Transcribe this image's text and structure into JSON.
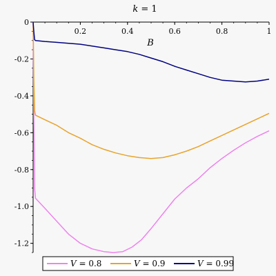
{
  "chart_data": {
    "type": "line",
    "title": "k = 1",
    "title_var": "k",
    "title_val": " = 1",
    "xlabel": "B",
    "ylabel": "",
    "xlim": [
      0,
      1
    ],
    "ylim": [
      -1.25,
      0
    ],
    "x_ticks": [
      0.2,
      0.4,
      0.6,
      0.8,
      1
    ],
    "x_tick_labels": [
      "0.2",
      "0.4",
      "0.6",
      "0.8",
      "1"
    ],
    "y_ticks": [
      0,
      -0.2,
      -0.4,
      -0.6,
      -0.8,
      -1.0,
      -1.2
    ],
    "y_tick_labels": [
      "0",
      "-0.2",
      "-0.4",
      "-0.6",
      "-0.8",
      "-1.0",
      "-1.2"
    ],
    "grid": false,
    "legend_position": "bottom",
    "series": [
      {
        "name": "V = 0.8",
        "legend_var": "V",
        "legend_val": " = 0.8",
        "color": "#ee82ee",
        "x": [
          0,
          0.003,
          0.006,
          0.01,
          0.05,
          0.1,
          0.15,
          0.2,
          0.25,
          0.3,
          0.34,
          0.38,
          0.42,
          0.46,
          0.5,
          0.55,
          0.6,
          0.65,
          0.7,
          0.75,
          0.8,
          0.85,
          0.9,
          0.95,
          1.0
        ],
        "y": [
          0,
          -0.5,
          -0.9,
          -0.955,
          -1.01,
          -1.08,
          -1.15,
          -1.2,
          -1.23,
          -1.245,
          -1.25,
          -1.245,
          -1.22,
          -1.18,
          -1.12,
          -1.04,
          -0.96,
          -0.9,
          -0.85,
          -0.79,
          -0.74,
          -0.695,
          -0.655,
          -0.62,
          -0.59
        ]
      },
      {
        "name": "V = 0.9",
        "legend_var": "V",
        "legend_val": " = 0.9",
        "color": "#e8a32a",
        "x": [
          0,
          0.003,
          0.006,
          0.01,
          0.05,
          0.1,
          0.15,
          0.2,
          0.25,
          0.3,
          0.35,
          0.4,
          0.45,
          0.5,
          0.55,
          0.6,
          0.65,
          0.7,
          0.75,
          0.8,
          0.85,
          0.9,
          0.95,
          1.0
        ],
        "y": [
          0,
          -0.3,
          -0.48,
          -0.505,
          -0.53,
          -0.56,
          -0.6,
          -0.63,
          -0.665,
          -0.69,
          -0.71,
          -0.725,
          -0.735,
          -0.74,
          -0.735,
          -0.72,
          -0.7,
          -0.675,
          -0.645,
          -0.615,
          -0.585,
          -0.555,
          -0.525,
          -0.495
        ]
      },
      {
        "name": "V = 0.99",
        "legend_var": "V",
        "legend_val": " = 0.99",
        "color": "#000080",
        "x": [
          0,
          0.003,
          0.006,
          0.01,
          0.05,
          0.1,
          0.15,
          0.2,
          0.25,
          0.3,
          0.35,
          0.4,
          0.45,
          0.5,
          0.55,
          0.6,
          0.65,
          0.7,
          0.75,
          0.8,
          0.85,
          0.9,
          0.95,
          1.0
        ],
        "y": [
          0,
          -0.05,
          -0.095,
          -0.1,
          -0.105,
          -0.11,
          -0.115,
          -0.12,
          -0.13,
          -0.14,
          -0.15,
          -0.16,
          -0.175,
          -0.195,
          -0.215,
          -0.24,
          -0.26,
          -0.28,
          -0.3,
          -0.315,
          -0.32,
          -0.325,
          -0.32,
          -0.31
        ]
      }
    ]
  }
}
